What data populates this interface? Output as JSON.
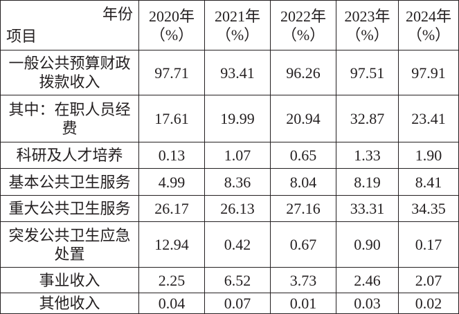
{
  "table": {
    "corner": {
      "top": "年份",
      "bottom": "项目"
    },
    "columns": [
      {
        "year": "2020年",
        "unit": "（%）"
      },
      {
        "year": "2021年",
        "unit": "（%）"
      },
      {
        "year": "2022年",
        "unit": "（%）"
      },
      {
        "year": "2023年",
        "unit": "（%）"
      },
      {
        "year": "2024年",
        "unit": "（%）"
      }
    ],
    "rows": [
      {
        "label": "一般公共预算财政拨款收入",
        "values": [
          "97.71",
          "93.41",
          "96.26",
          "97.51",
          "97.91"
        ]
      },
      {
        "label": "其中：在职人员经费",
        "values": [
          "17.61",
          "19.99",
          "20.94",
          "32.87",
          "23.41"
        ]
      },
      {
        "label": "科研及人才培养",
        "values": [
          "0.13",
          "1.07",
          "0.65",
          "1.33",
          "1.90"
        ]
      },
      {
        "label": "基本公共卫生服务",
        "values": [
          "4.99",
          "8.36",
          "8.04",
          "8.19",
          "8.41"
        ]
      },
      {
        "label": "重大公共卫生服务",
        "values": [
          "26.17",
          "26.13",
          "27.16",
          "33.31",
          "34.35"
        ]
      },
      {
        "label": "突发公共卫生应急处置",
        "values": [
          "12.94",
          "0.42",
          "0.67",
          "0.90",
          "0.17"
        ]
      },
      {
        "label": "事业收入",
        "values": [
          "2.25",
          "6.52",
          "3.73",
          "2.46",
          "2.07"
        ]
      },
      {
        "label": "其他收入",
        "values": [
          "0.04",
          "0.07",
          "0.01",
          "0.03",
          "0.02"
        ]
      }
    ]
  }
}
